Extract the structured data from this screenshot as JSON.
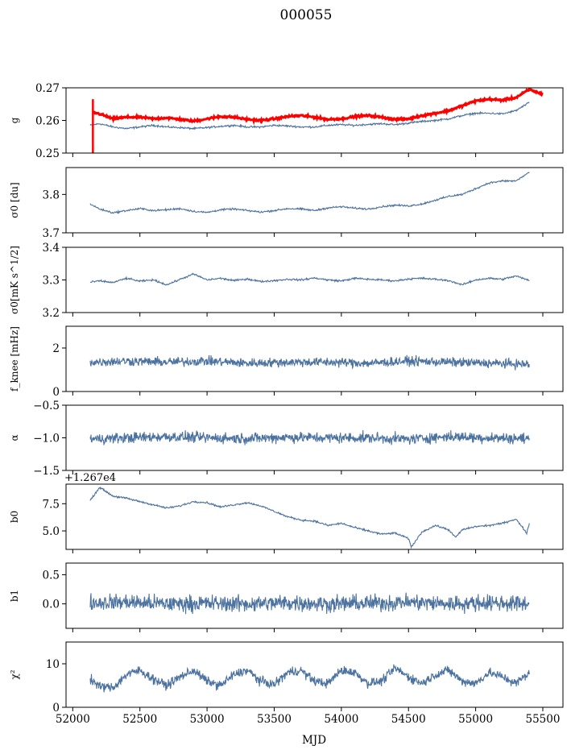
{
  "figure_title": "000055",
  "colors": {
    "series": "#4c72a0",
    "model": "#ff0000",
    "axes": "#000000"
  },
  "chart_data": [
    {
      "type": "line",
      "ylabel": "g",
      "xlim": [
        51950,
        55650
      ],
      "ylim": [
        0.25,
        0.27
      ],
      "yticks": [
        "0.25",
        "0.26",
        "0.27"
      ],
      "ytick_values": [
        0.25,
        0.26,
        0.27
      ],
      "grid": false,
      "series": [
        {
          "color": "#4c72a0",
          "x": [
            52130,
            52200,
            52300,
            52400,
            52500,
            52600,
            52700,
            52800,
            52900,
            53000,
            53100,
            53200,
            53300,
            53400,
            53500,
            53600,
            53700,
            53800,
            53900,
            54000,
            54100,
            54200,
            54300,
            54400,
            54500,
            54600,
            54700,
            54800,
            54900,
            55000,
            55100,
            55200,
            55300,
            55400
          ],
          "y": [
            0.2585,
            0.259,
            0.258,
            0.2575,
            0.258,
            0.2585,
            0.258,
            0.2578,
            0.2575,
            0.2578,
            0.2582,
            0.2585,
            0.258,
            0.258,
            0.2585,
            0.2583,
            0.258,
            0.258,
            0.2585,
            0.2587,
            0.2585,
            0.2588,
            0.259,
            0.2587,
            0.2592,
            0.2597,
            0.26,
            0.2605,
            0.2615,
            0.2622,
            0.2622,
            0.262,
            0.263,
            0.2655
          ]
        },
        {
          "color": "#ff0000",
          "x": [
            52150,
            52200,
            52300,
            52400,
            52500,
            52600,
            52700,
            52800,
            52900,
            53000,
            53100,
            53200,
            53300,
            53400,
            53500,
            53600,
            53700,
            53800,
            53900,
            54000,
            54100,
            54200,
            54300,
            54400,
            54500,
            54600,
            54700,
            54800,
            54900,
            55000,
            55100,
            55200,
            55300,
            55400,
            55500
          ],
          "y": [
            0.2625,
            0.262,
            0.2605,
            0.261,
            0.261,
            0.2605,
            0.2608,
            0.2603,
            0.2598,
            0.2605,
            0.2612,
            0.261,
            0.2603,
            0.26,
            0.2605,
            0.2612,
            0.2615,
            0.261,
            0.2603,
            0.2605,
            0.2612,
            0.2615,
            0.261,
            0.2603,
            0.2605,
            0.2615,
            0.2622,
            0.263,
            0.2645,
            0.266,
            0.2665,
            0.2662,
            0.267,
            0.2695,
            0.268
          ]
        }
      ]
    },
    {
      "type": "line",
      "ylabel": "σ0 [du]",
      "xlim": [
        51950,
        55650
      ],
      "ylim": [
        3.7,
        3.87
      ],
      "yticks": [
        "3.7",
        "3.8"
      ],
      "ytick_values": [
        3.7,
        3.8
      ],
      "grid": false,
      "series": [
        {
          "color": "#4c72a0",
          "x": [
            52130,
            52200,
            52300,
            52400,
            52500,
            52600,
            52700,
            52800,
            52900,
            53000,
            53100,
            53200,
            53300,
            53400,
            53500,
            53600,
            53700,
            53800,
            53900,
            54000,
            54100,
            54200,
            54300,
            54400,
            54500,
            54600,
            54700,
            54800,
            54900,
            55000,
            55100,
            55200,
            55300,
            55400
          ],
          "y": [
            3.775,
            3.762,
            3.752,
            3.758,
            3.763,
            3.758,
            3.76,
            3.763,
            3.756,
            3.753,
            3.76,
            3.762,
            3.758,
            3.754,
            3.758,
            3.763,
            3.762,
            3.758,
            3.765,
            3.768,
            3.764,
            3.762,
            3.768,
            3.772,
            3.77,
            3.775,
            3.785,
            3.795,
            3.8,
            3.815,
            3.83,
            3.835,
            3.835,
            3.858
          ]
        }
      ]
    },
    {
      "type": "line",
      "ylabel": "σ0[mK s^1/2]",
      "xlim": [
        51950,
        55650
      ],
      "ylim": [
        3.2,
        3.4
      ],
      "yticks": [
        "3.2",
        "3.3",
        "3.4"
      ],
      "ytick_values": [
        3.2,
        3.3,
        3.4
      ],
      "grid": false,
      "series": [
        {
          "color": "#4c72a0",
          "x": [
            52130,
            52200,
            52300,
            52400,
            52500,
            52600,
            52700,
            52800,
            52900,
            53000,
            53100,
            53200,
            53300,
            53400,
            53500,
            53600,
            53700,
            53800,
            53900,
            54000,
            54100,
            54200,
            54300,
            54400,
            54500,
            54600,
            54700,
            54800,
            54900,
            55000,
            55100,
            55200,
            55300,
            55400
          ],
          "y": [
            3.293,
            3.297,
            3.292,
            3.305,
            3.296,
            3.3,
            3.285,
            3.302,
            3.318,
            3.3,
            3.305,
            3.298,
            3.303,
            3.295,
            3.298,
            3.302,
            3.3,
            3.306,
            3.3,
            3.297,
            3.305,
            3.302,
            3.3,
            3.297,
            3.303,
            3.305,
            3.302,
            3.298,
            3.285,
            3.3,
            3.305,
            3.302,
            3.312,
            3.298
          ]
        }
      ]
    },
    {
      "type": "line",
      "ylabel": "f_knee [mHz]",
      "xlim": [
        51950,
        55650
      ],
      "ylim": [
        0,
        3
      ],
      "yticks": [
        "0",
        "2"
      ],
      "ytick_values": [
        0,
        2
      ],
      "grid": false,
      "series": [
        {
          "color": "#4c72a0",
          "noise": 0.18,
          "x": [
            52130,
            52400,
            52700,
            53000,
            53300,
            53600,
            53900,
            54200,
            54500,
            54800,
            55100,
            55400
          ],
          "y": [
            1.35,
            1.4,
            1.35,
            1.4,
            1.3,
            1.35,
            1.35,
            1.3,
            1.4,
            1.35,
            1.3,
            1.25
          ]
        }
      ]
    },
    {
      "type": "line",
      "ylabel": "α",
      "xlim": [
        51950,
        55650
      ],
      "ylim": [
        -1.5,
        -0.5
      ],
      "yticks": [
        "−1.5",
        "−1.0",
        "−0.5"
      ],
      "ytick_values": [
        -1.5,
        -1.0,
        -0.5
      ],
      "grid": false,
      "series": [
        {
          "color": "#4c72a0",
          "noise": 0.07,
          "x": [
            52130,
            52400,
            52700,
            53000,
            53300,
            53600,
            53900,
            54200,
            54500,
            54800,
            55100,
            55400
          ],
          "y": [
            -1.02,
            -1.0,
            -0.98,
            -1.0,
            -1.01,
            -0.99,
            -1.0,
            -1.0,
            -1.02,
            -0.98,
            -1.0,
            -1.01
          ]
        }
      ]
    },
    {
      "type": "line",
      "ylabel": "b0",
      "offset_text": "+1.267e4",
      "xlim": [
        51950,
        55650
      ],
      "ylim": [
        3.3,
        9.3
      ],
      "yticks": [
        "5.0",
        "7.5"
      ],
      "ytick_values": [
        5.0,
        7.5
      ],
      "grid": false,
      "series": [
        {
          "color": "#4c72a0",
          "x": [
            52130,
            52170,
            52200,
            52250,
            52300,
            52400,
            52500,
            52600,
            52700,
            52800,
            52900,
            53000,
            53100,
            53200,
            53300,
            53400,
            53500,
            53600,
            53700,
            53800,
            53900,
            54000,
            54100,
            54200,
            54300,
            54400,
            54500,
            54520,
            54600,
            54700,
            54800,
            54850,
            54900,
            55000,
            55100,
            55200,
            55300,
            55380,
            55400
          ],
          "y": [
            7.8,
            8.5,
            9.0,
            8.6,
            8.2,
            8.0,
            7.7,
            7.4,
            7.1,
            7.3,
            7.7,
            7.6,
            7.2,
            7.4,
            7.6,
            7.3,
            6.8,
            6.3,
            6.0,
            5.9,
            5.5,
            5.7,
            5.3,
            5.0,
            4.7,
            4.8,
            4.3,
            3.5,
            4.9,
            5.5,
            5.1,
            4.4,
            5.1,
            5.4,
            5.5,
            5.7,
            6.1,
            4.8,
            5.7
          ]
        }
      ]
    },
    {
      "type": "line",
      "ylabel": "b1",
      "xlim": [
        51950,
        55650
      ],
      "ylim": [
        -0.42,
        0.7
      ],
      "yticks": [
        "0.0",
        "0.5"
      ],
      "ytick_values": [
        0.0,
        0.5
      ],
      "grid": false,
      "series": [
        {
          "color": "#4c72a0",
          "noise": 0.12,
          "x": [
            52130,
            52400,
            52700,
            53000,
            53300,
            53600,
            53900,
            54200,
            54500,
            54800,
            55100,
            55400
          ],
          "y": [
            0.02,
            0.03,
            0.0,
            0.01,
            0.0,
            0.02,
            0.0,
            0.01,
            0.03,
            0.0,
            0.02,
            0.0
          ]
        }
      ]
    },
    {
      "type": "line",
      "ylabel": "χ²",
      "xlabel": "MJD",
      "xlim": [
        51950,
        55650
      ],
      "ylim": [
        0,
        15
      ],
      "yticks": [
        "0",
        "10"
      ],
      "ytick_values": [
        0,
        10
      ],
      "xticks": [
        "52000",
        "52500",
        "53000",
        "53500",
        "54000",
        "54500",
        "55000",
        "55500"
      ],
      "xtick_values": [
        52000,
        52500,
        53000,
        53500,
        54000,
        54500,
        55000,
        55500
      ],
      "grid": false,
      "series": [
        {
          "color": "#4c72a0",
          "noise": 0.9,
          "x": [
            52130,
            52200,
            52300,
            52400,
            52500,
            52600,
            52700,
            52800,
            52900,
            53000,
            53100,
            53200,
            53300,
            53400,
            53500,
            53600,
            53700,
            53800,
            53900,
            54000,
            54100,
            54200,
            54300,
            54400,
            54500,
            54600,
            54700,
            54800,
            54900,
            55000,
            55100,
            55200,
            55300,
            55400
          ],
          "y": [
            6.5,
            4.8,
            4.5,
            7.5,
            8.5,
            6.5,
            5.0,
            7.0,
            8.5,
            6.0,
            5.0,
            7.5,
            8.5,
            6.0,
            5.2,
            8.0,
            8.5,
            6.0,
            5.5,
            8.5,
            8.0,
            5.5,
            6.0,
            9.0,
            7.0,
            5.5,
            7.5,
            8.5,
            6.0,
            5.5,
            8.0,
            7.0,
            5.5,
            8.0
          ]
        }
      ]
    }
  ]
}
